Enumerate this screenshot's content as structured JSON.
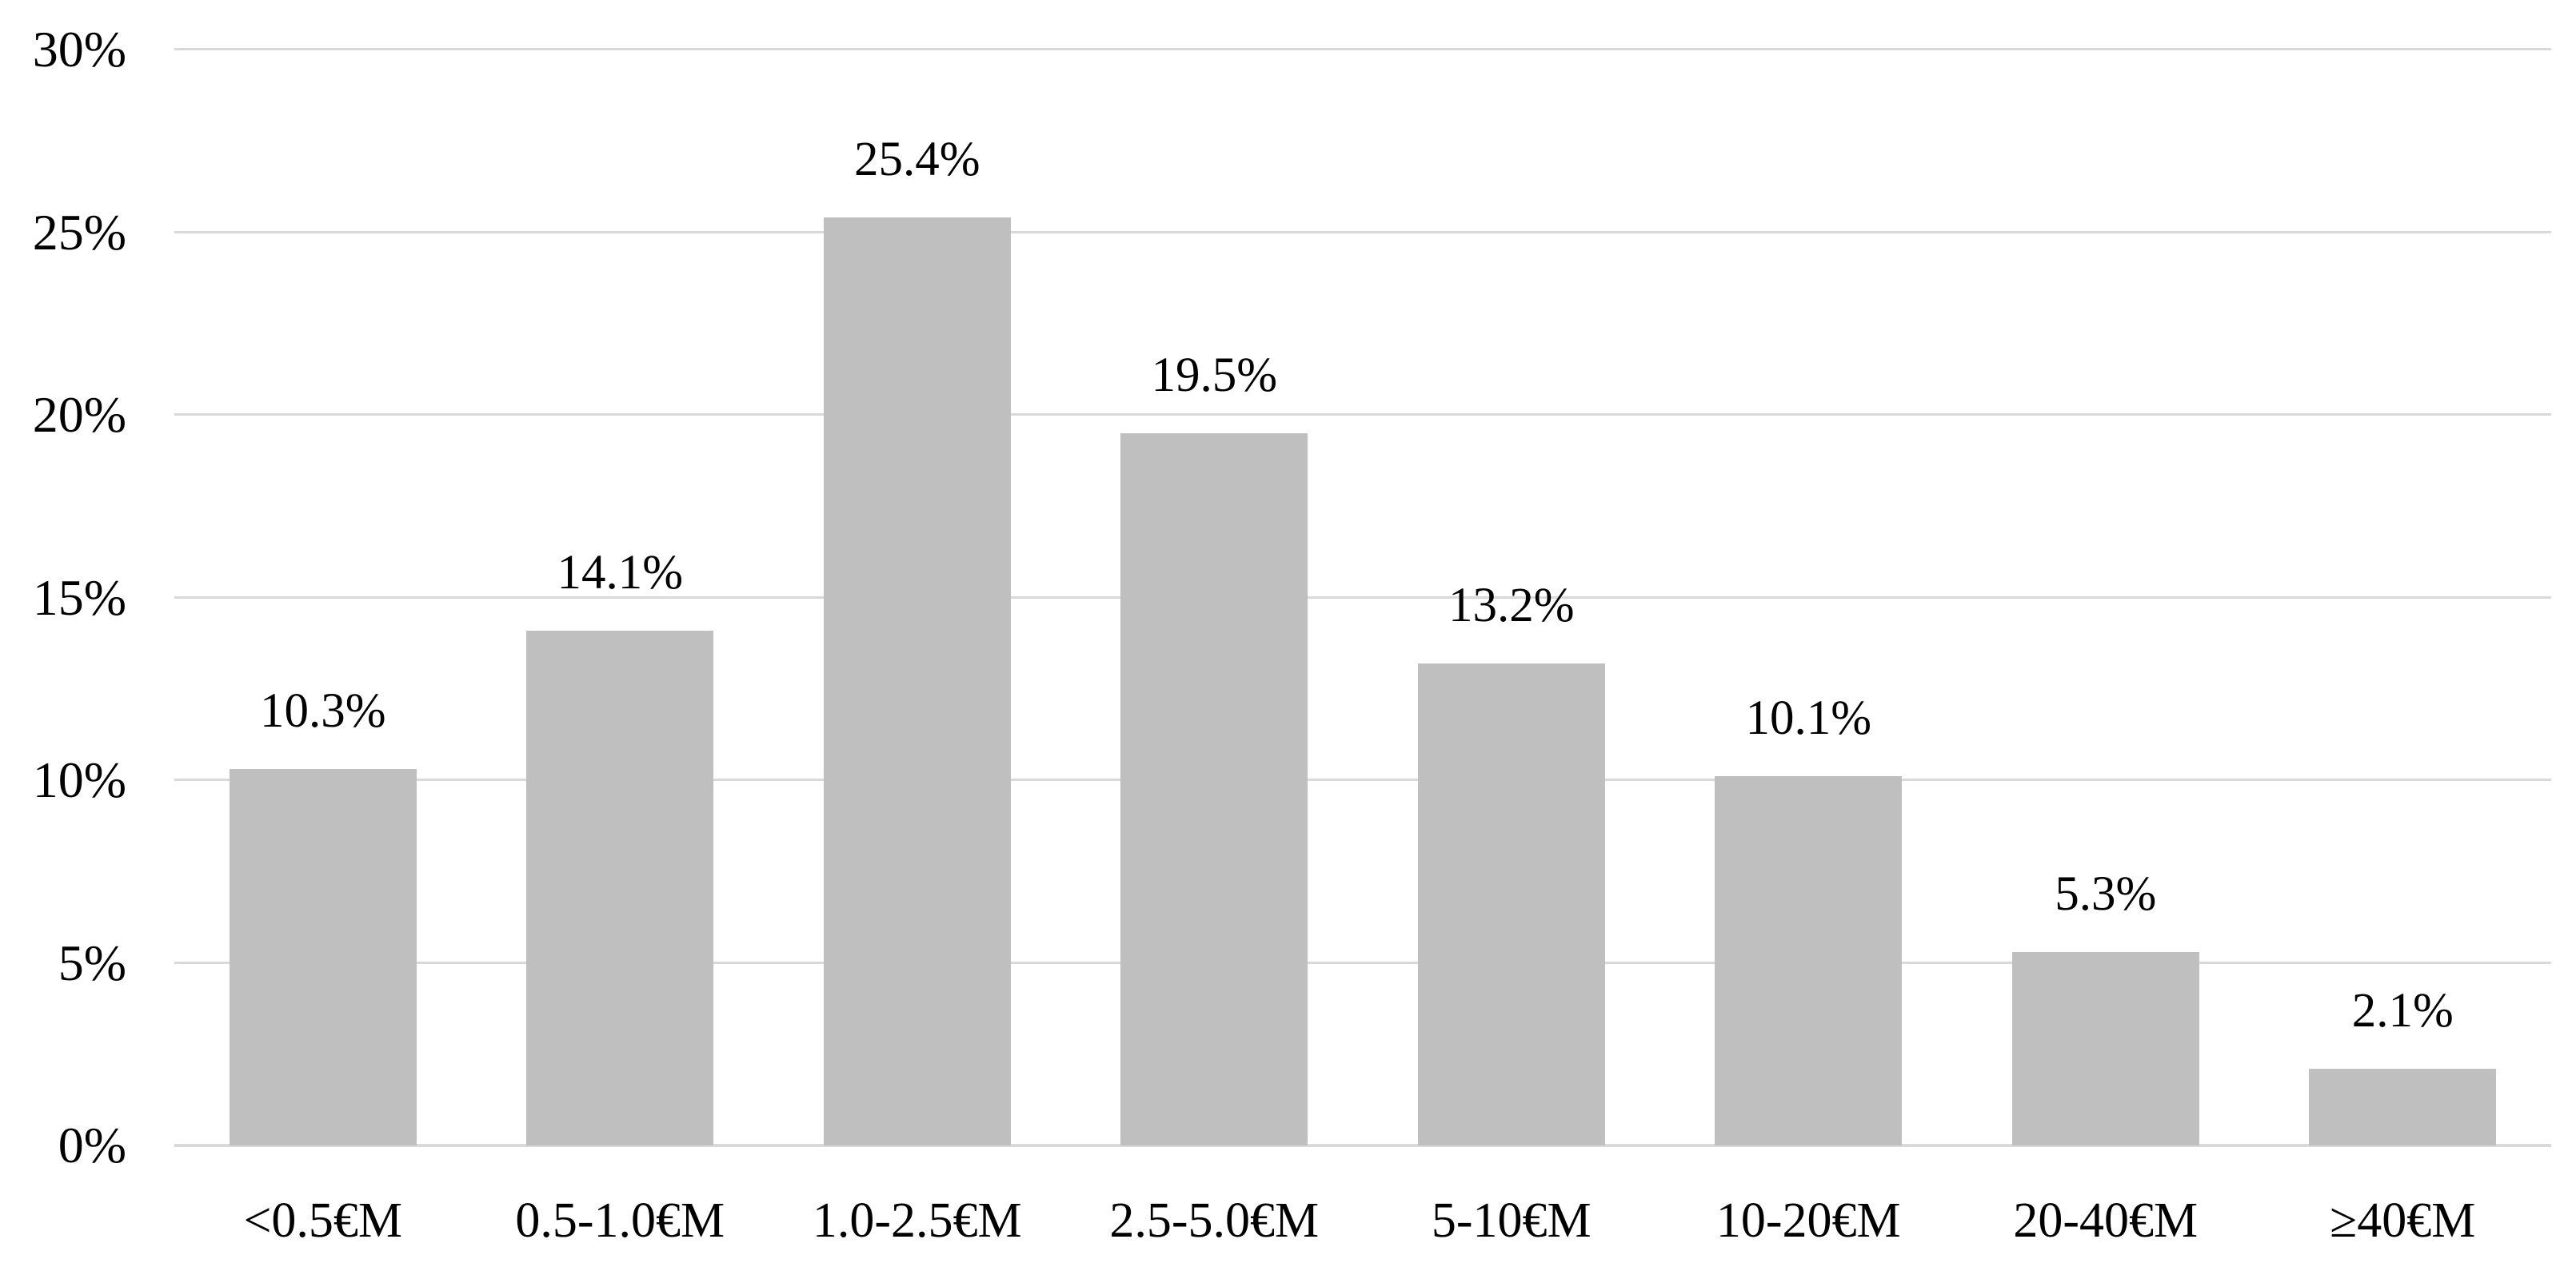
{
  "chart_data": {
    "type": "bar",
    "title": "",
    "xlabel": "",
    "ylabel": "",
    "categories": [
      "<0.5€M",
      "0.5-1.0€M",
      "1.0-2.5€M",
      "2.5-5.0€M",
      "5-10€M",
      "10-20€M",
      "20-40€M",
      "≥40€M"
    ],
    "values": [
      10.3,
      14.1,
      25.4,
      19.5,
      13.2,
      10.1,
      5.3,
      2.1
    ],
    "data_labels": [
      "10.3%",
      "14.1%",
      "25.4%",
      "19.5%",
      "13.2%",
      "10.1%",
      "5.3%",
      "2.1%"
    ],
    "ylim": [
      0,
      30
    ],
    "y_ticks": [
      {
        "value": 0,
        "label": "0%"
      },
      {
        "value": 5,
        "label": "5%"
      },
      {
        "value": 10,
        "label": "10%"
      },
      {
        "value": 15,
        "label": "15%"
      },
      {
        "value": 20,
        "label": "20%"
      },
      {
        "value": 25,
        "label": "25%"
      },
      {
        "value": 30,
        "label": "30%"
      }
    ],
    "grid": "horizontal",
    "legend_position": "none",
    "colors": {
      "bar_fill": "#bfbfbf",
      "gridline": "#d9d9d9",
      "axis_line": "#d9d9d9",
      "text": "#000000",
      "background": "#ffffff"
    }
  }
}
